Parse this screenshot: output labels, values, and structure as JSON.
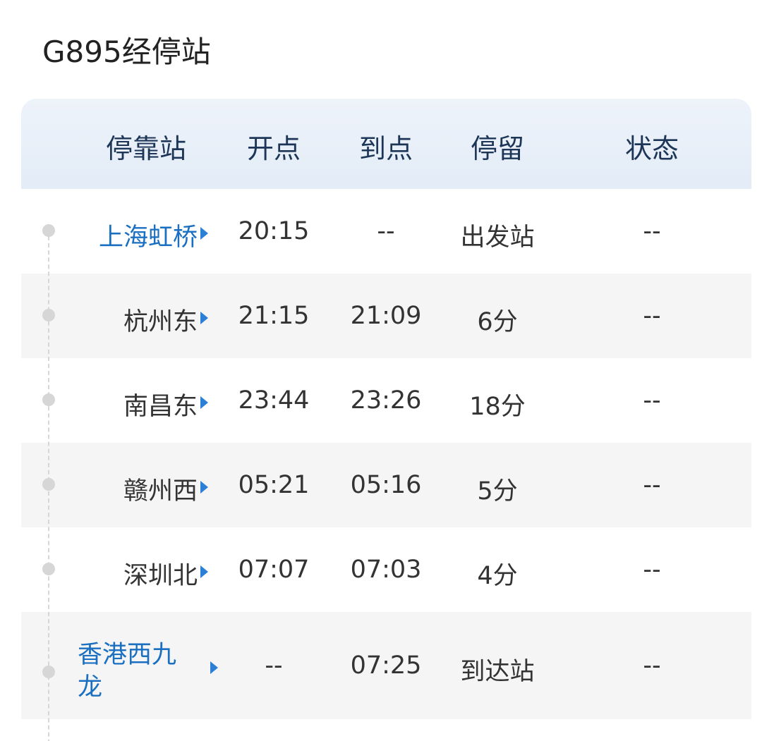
{
  "title": "G895经停站",
  "columns": [
    "停靠站",
    "开点",
    "到点",
    "停留",
    "状态"
  ],
  "rows": [
    {
      "station": "上海虹桥",
      "depart": "20:15",
      "arrive": "--",
      "stay": "出发站",
      "status": "--",
      "highlight": true
    },
    {
      "station": "杭州东",
      "depart": "21:15",
      "arrive": "21:09",
      "stay": "6分",
      "status": "--",
      "highlight": false
    },
    {
      "station": "南昌东",
      "depart": "23:44",
      "arrive": "23:26",
      "stay": "18分",
      "status": "--",
      "highlight": false
    },
    {
      "station": "赣州西",
      "depart": "05:21",
      "arrive": "05:16",
      "stay": "5分",
      "status": "--",
      "highlight": false
    },
    {
      "station": "深圳北",
      "depart": "07:07",
      "arrive": "07:03",
      "stay": "4分",
      "status": "--",
      "highlight": false
    },
    {
      "station": "香港西九龙",
      "depart": "--",
      "arrive": "07:25",
      "stay": "到达站",
      "status": "--",
      "highlight": true
    }
  ],
  "colors": {
    "accent": "#1a6fc0",
    "header_bg": "#e8eff8",
    "alt_row": "#f5f5f5"
  }
}
